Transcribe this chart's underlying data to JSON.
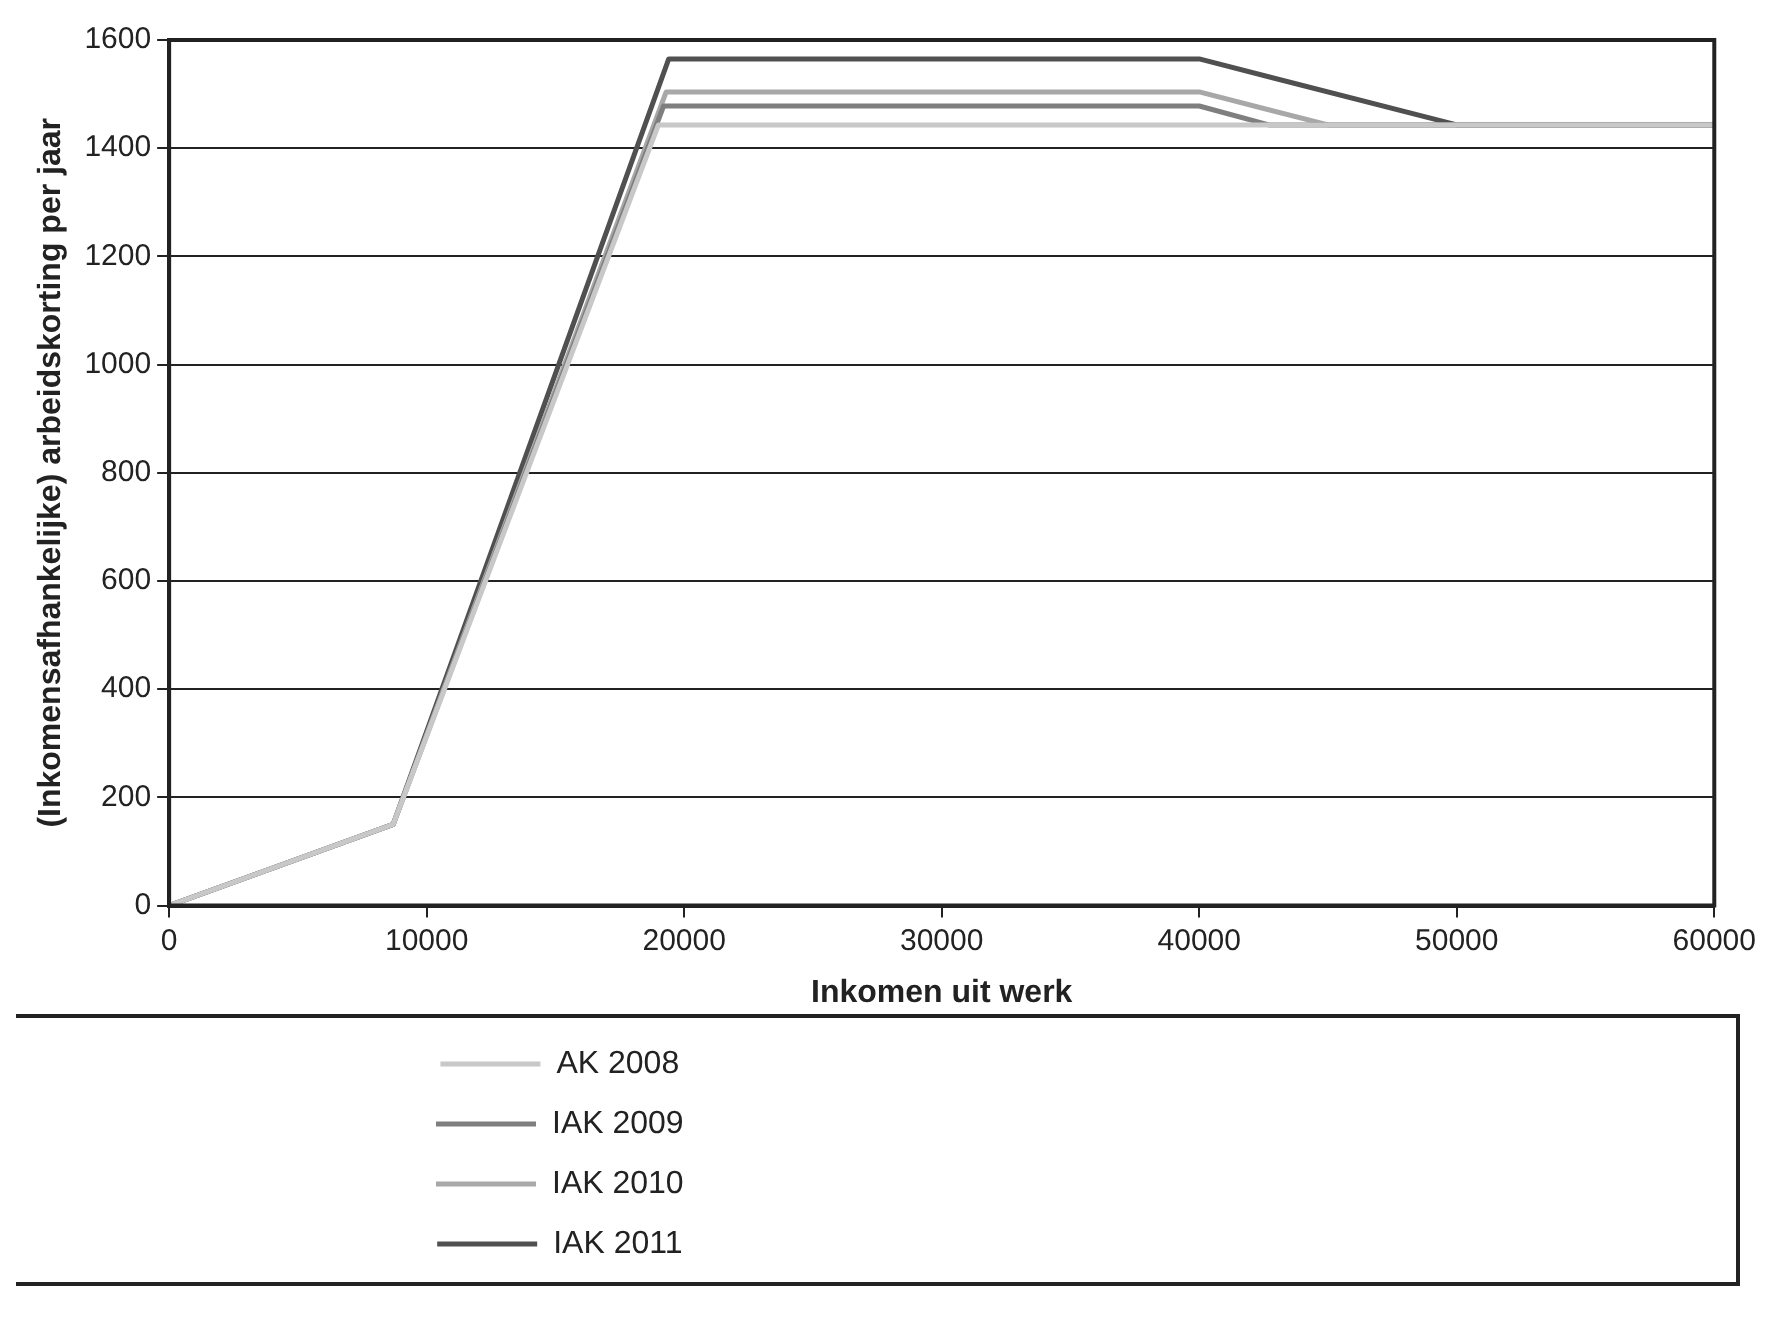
{
  "chart_data": {
    "type": "line",
    "xlabel": "Inkomen uit werk",
    "ylabel": "(Inkomensafhankelijke) arbeidskorting per jaar",
    "xlim": [
      0,
      60000
    ],
    "xticks": [
      0,
      10000,
      20000,
      30000,
      40000,
      50000,
      60000
    ],
    "ylim": [
      0,
      1600
    ],
    "yticks": [
      0,
      200,
      400,
      600,
      800,
      1000,
      1200,
      1400,
      1600
    ],
    "grid": "y",
    "legend": "bottom",
    "marker": "none",
    "line_style": "solid",
    "series": [
      {
        "name": "AK 2008",
        "color": "#c8c8c8",
        "x": [
          0,
          8700,
          19000,
          60000
        ],
        "values": [
          0,
          150,
          1443,
          1443
        ]
      },
      {
        "name": "IAK 2009",
        "color": "#7f7f7f",
        "x": [
          0,
          8700,
          19200,
          40000,
          42700,
          60000
        ],
        "values": [
          0,
          150,
          1478,
          1478,
          1443,
          1443
        ]
      },
      {
        "name": "IAK 2010",
        "color": "#a8a8a8",
        "x": [
          0,
          8700,
          19300,
          40000,
          45000,
          60000
        ],
        "values": [
          0,
          150,
          1504,
          1504,
          1443,
          1443
        ]
      },
      {
        "name": "IAK 2011",
        "color": "#505050",
        "x": [
          0,
          8700,
          19400,
          40000,
          50000,
          60000
        ],
        "values": [
          0,
          150,
          1565,
          1565,
          1443,
          1443
        ]
      }
    ]
  }
}
